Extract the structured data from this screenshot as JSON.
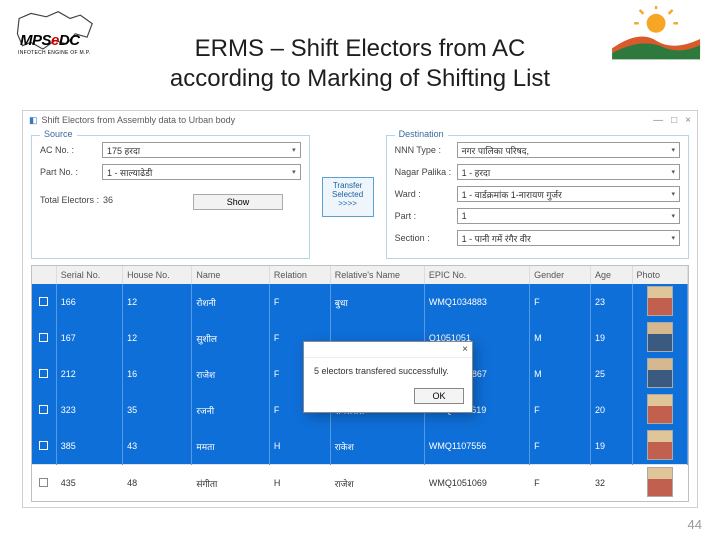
{
  "slide": {
    "title_line1": "ERMS – Shift Electors from AC",
    "title_line2": "according to Marking of Shifting List",
    "page_number": "44"
  },
  "logos": {
    "left_primary": "MPS",
    "left_accent": "e",
    "left_suffix": "DC",
    "left_tagline": "INFOTECH ENGINE OF M.P.",
    "right_alt": "sun-hills-icon"
  },
  "window": {
    "title": "Shift Electors from Assembly data to Urban body",
    "min_label": "—",
    "max_label": "□",
    "close_label": "×"
  },
  "source": {
    "panel_title": "Source",
    "ac_label": "AC No. :",
    "ac_value": "175 हरदा",
    "part_label": "Part No. :",
    "part_value": "1 - साल्याढेडी",
    "total_label": "Total Electors :",
    "total_value": "36",
    "show_label": "Show"
  },
  "dest": {
    "panel_title": "Destination",
    "type_label": "NNN Type :",
    "type_value": "नगर पालिका परिषद,",
    "np_label": "Nagar Palika :",
    "np_value": "1 - हरदा",
    "ward_label": "Ward :",
    "ward_value": "1 - वार्डक्रमांक 1-नारायण गुर्जर",
    "part_label": "Part :",
    "part_value": "1",
    "section_label": "Section :",
    "section_value": "1 - पानी गमें रंगैर वीर"
  },
  "transfer": {
    "label": "Transfer Selected >>>>"
  },
  "grid": {
    "columns": [
      "",
      "Serial No.",
      "House No.",
      "Name",
      "Relation",
      "Relative's Name",
      "EPIC No.",
      "Gender",
      "Age",
      "Photo"
    ],
    "col_widths": [
      "12px",
      "48px",
      "50px",
      "56px",
      "44px",
      "68px",
      "76px",
      "44px",
      "30px",
      "40px"
    ],
    "rows": [
      {
        "sel": true,
        "serial": "166",
        "house": "12",
        "name": "रोशनी",
        "rel": "F",
        "relname": "बुधा",
        "epic": "WMQ1034883",
        "gender": "F",
        "age": "23",
        "photo": "f"
      },
      {
        "sel": true,
        "serial": "167",
        "house": "12",
        "name": "सुशील",
        "rel": "F",
        "relname": "",
        "epic": "Q1051051",
        "gender": "M",
        "age": "19",
        "photo": "m"
      },
      {
        "sel": true,
        "serial": "212",
        "house": "16",
        "name": "राजेश",
        "rel": "F",
        "relname": "",
        "epic": "WMQ1034867",
        "gender": "M",
        "age": "25",
        "photo": "m"
      },
      {
        "sel": true,
        "serial": "323",
        "house": "35",
        "name": "रजनी",
        "rel": "F",
        "relname": "रामसरोस",
        "epic": "WMQ1100619",
        "gender": "F",
        "age": "20",
        "photo": "f"
      },
      {
        "sel": true,
        "serial": "385",
        "house": "43",
        "name": "ममता",
        "rel": "H",
        "relname": "राकेश",
        "epic": "WMQ1107556",
        "gender": "F",
        "age": "19",
        "photo": "f"
      },
      {
        "sel": false,
        "serial": "435",
        "house": "48",
        "name": "संगीता",
        "rel": "H",
        "relname": "राजेश",
        "epic": "WMQ1051069",
        "gender": "F",
        "age": "32",
        "photo": "f"
      }
    ]
  },
  "dialog": {
    "message": "5 electors transfered successfully.",
    "ok_label": "OK"
  },
  "colors": {
    "selected_row": "#0f6fd8",
    "accent_red": "#cc0000"
  }
}
